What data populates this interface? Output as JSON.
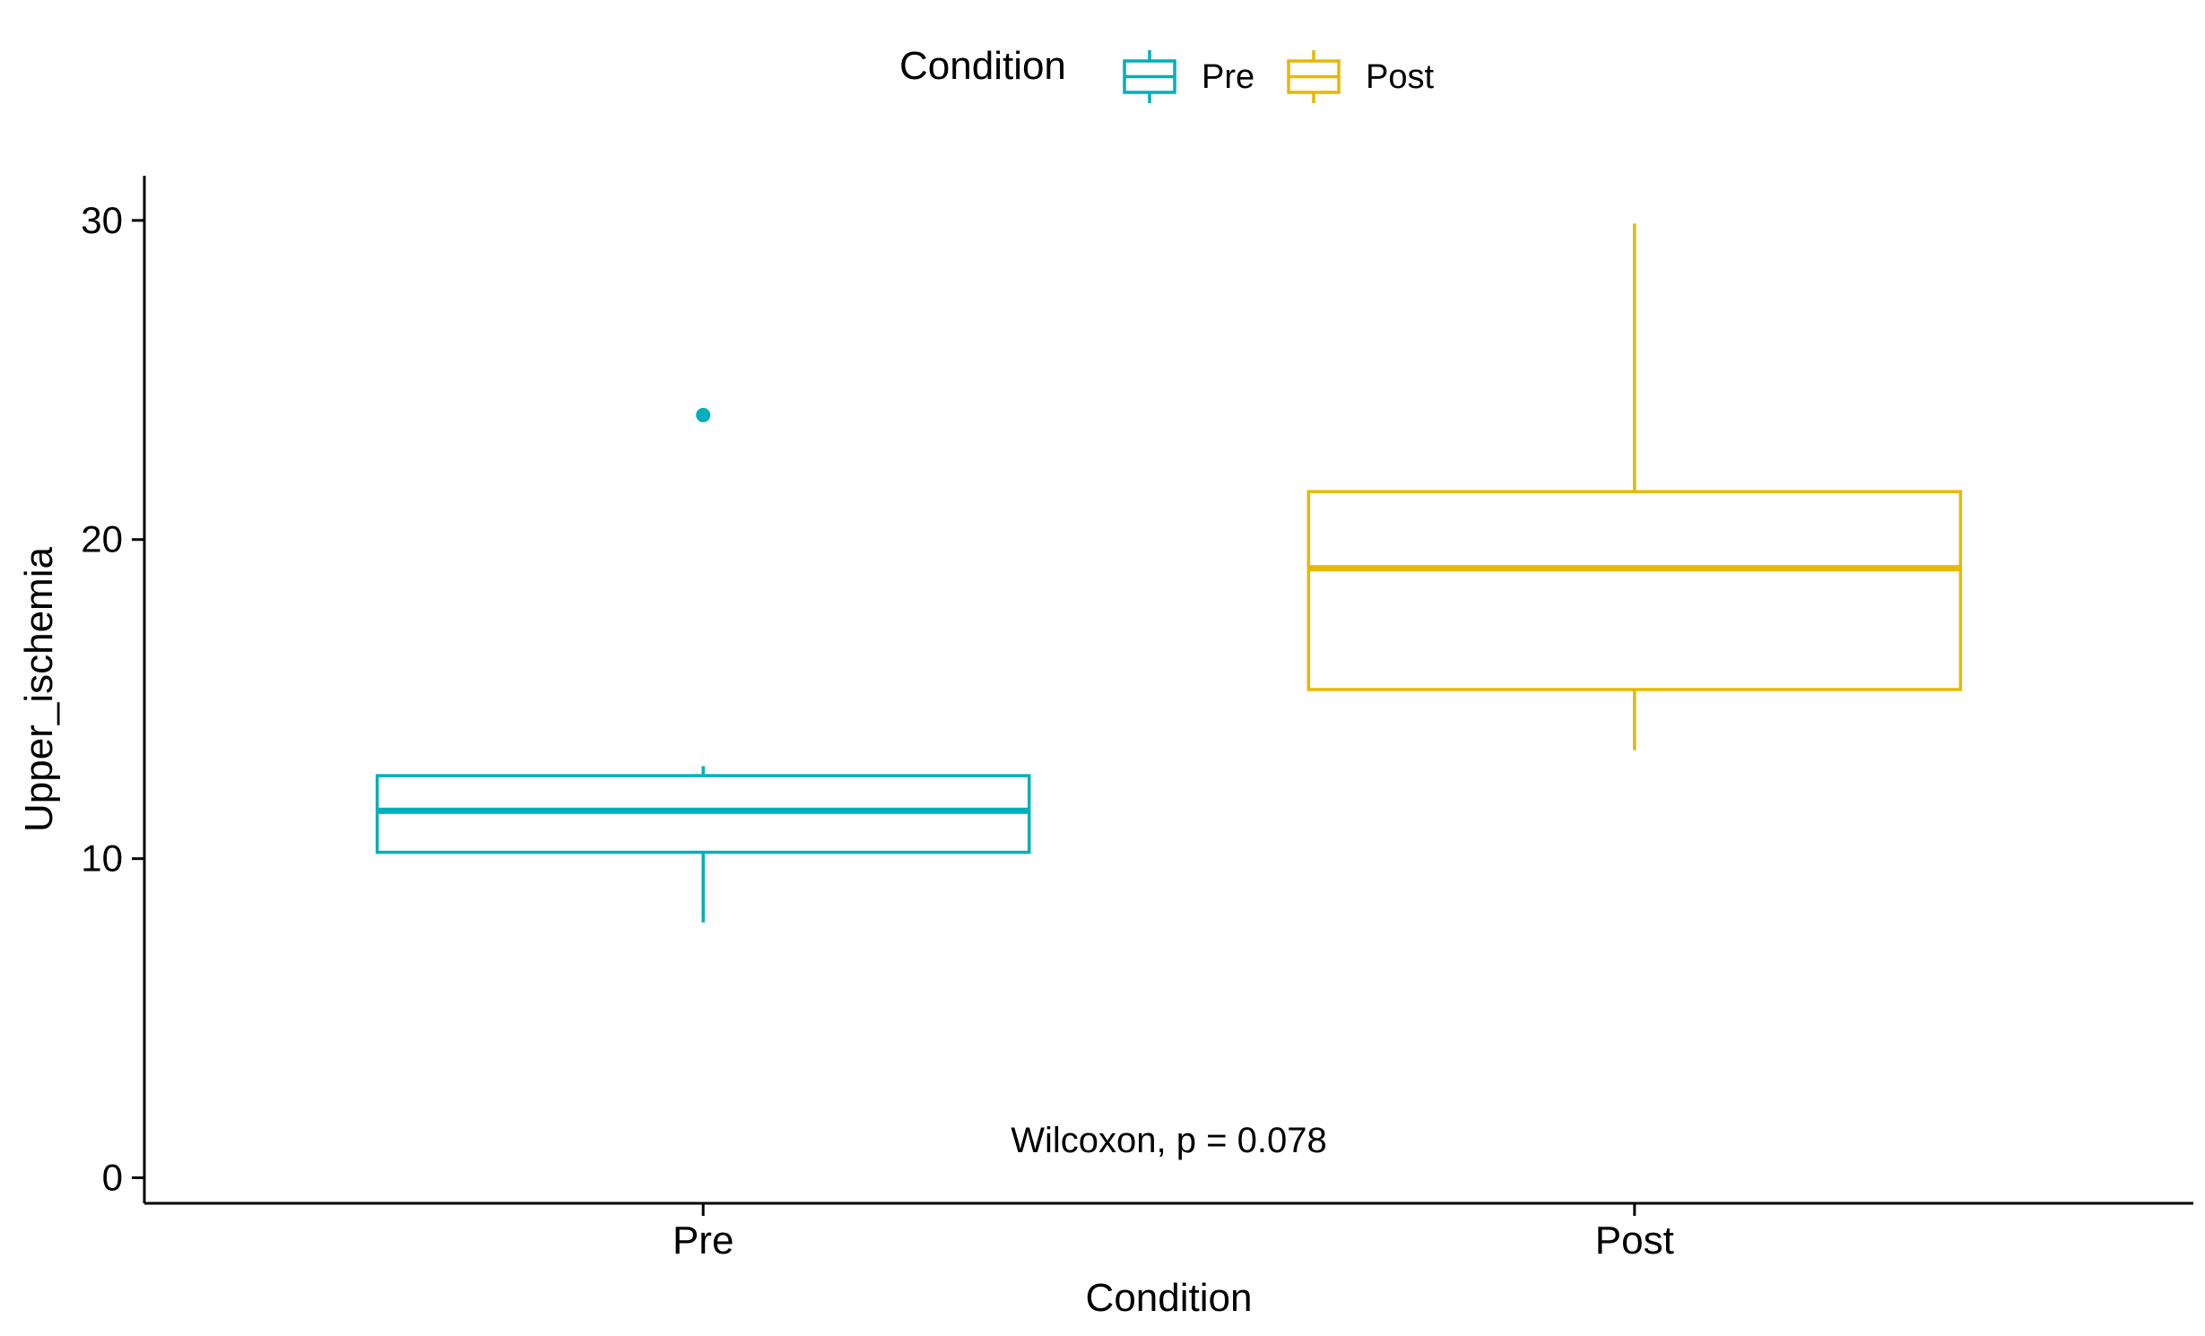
{
  "chart_data": {
    "type": "box",
    "xlabel": "Condition",
    "ylabel": "Upper_ischemia",
    "ylim": [
      -0.8,
      31.4
    ],
    "yticks": [
      0,
      10,
      20,
      30
    ],
    "categories": [
      "Pre",
      "Post"
    ],
    "legend": {
      "title": "Condition",
      "position": "top",
      "items": [
        "Pre",
        "Post"
      ]
    },
    "series": [
      {
        "name": "Pre",
        "color": "#00AFBB",
        "whisker_low": 8.0,
        "q1": 10.2,
        "median": 11.5,
        "q3": 12.6,
        "whisker_high": 12.9,
        "outliers": [
          23.9
        ]
      },
      {
        "name": "Post",
        "color": "#E7B800",
        "whisker_low": 13.4,
        "q1": 15.3,
        "median": 19.1,
        "q3": 21.5,
        "whisker_high": 29.9,
        "outliers": []
      }
    ],
    "annotation": "Wilcoxon, p = 0.078",
    "annotation_position": {
      "x": 1.5,
      "y": 1.2
    },
    "grid": false
  }
}
